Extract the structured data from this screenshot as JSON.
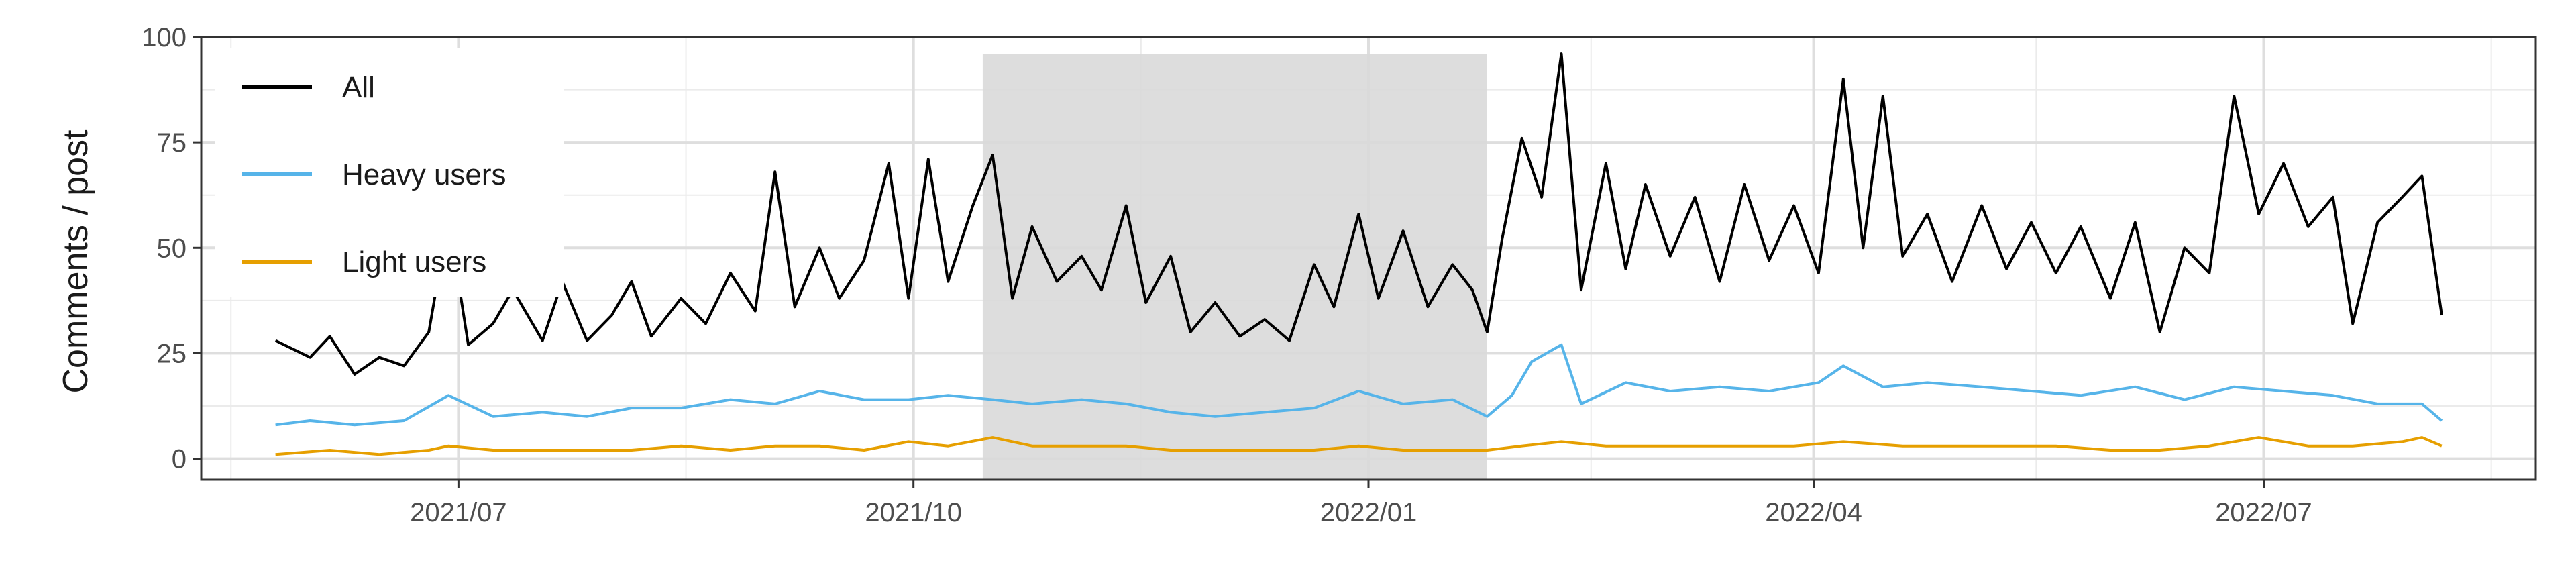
{
  "chart_data": {
    "type": "line",
    "title": "",
    "xlabel": "",
    "ylabel": "Comments / post",
    "x_range": [
      "2021-05-10",
      "2022-08-25"
    ],
    "x_ticks": [
      {
        "date": "2021-07-01",
        "label": "2021/07"
      },
      {
        "date": "2021-10-01",
        "label": "2021/10"
      },
      {
        "date": "2022-01-01",
        "label": "2022/01"
      },
      {
        "date": "2022-04-01",
        "label": "2022/04"
      },
      {
        "date": "2022-07-01",
        "label": "2022/07"
      }
    ],
    "ylim": [
      -5,
      100
    ],
    "y_ticks": [
      0,
      25,
      50,
      75,
      100
    ],
    "grid": true,
    "legend_position": "top-left",
    "shaded_region": {
      "start": "2021-10-15",
      "end": "2022-01-25",
      "ymax": 96,
      "color": "#d9d9d9"
    },
    "series": [
      {
        "name": "All",
        "color": "#000000",
        "points": [
          [
            "2021-05-25",
            28
          ],
          [
            "2021-06-01",
            24
          ],
          [
            "2021-06-05",
            29
          ],
          [
            "2021-06-10",
            20
          ],
          [
            "2021-06-15",
            24
          ],
          [
            "2021-06-20",
            22
          ],
          [
            "2021-06-25",
            30
          ],
          [
            "2021-06-29",
            57
          ],
          [
            "2021-07-03",
            27
          ],
          [
            "2021-07-08",
            32
          ],
          [
            "2021-07-12",
            40
          ],
          [
            "2021-07-18",
            28
          ],
          [
            "2021-07-22",
            42
          ],
          [
            "2021-07-27",
            28
          ],
          [
            "2021-08-01",
            34
          ],
          [
            "2021-08-05",
            42
          ],
          [
            "2021-08-09",
            29
          ],
          [
            "2021-08-15",
            38
          ],
          [
            "2021-08-20",
            32
          ],
          [
            "2021-08-25",
            44
          ],
          [
            "2021-08-30",
            35
          ],
          [
            "2021-09-03",
            68
          ],
          [
            "2021-09-07",
            36
          ],
          [
            "2021-09-12",
            50
          ],
          [
            "2021-09-16",
            38
          ],
          [
            "2021-09-21",
            47
          ],
          [
            "2021-09-26",
            70
          ],
          [
            "2021-09-30",
            38
          ],
          [
            "2021-10-04",
            71
          ],
          [
            "2021-10-08",
            42
          ],
          [
            "2021-10-13",
            60
          ],
          [
            "2021-10-17",
            72
          ],
          [
            "2021-10-21",
            38
          ],
          [
            "2021-10-25",
            55
          ],
          [
            "2021-10-30",
            42
          ],
          [
            "2021-11-04",
            48
          ],
          [
            "2021-11-08",
            40
          ],
          [
            "2021-11-13",
            60
          ],
          [
            "2021-11-17",
            37
          ],
          [
            "2021-11-22",
            48
          ],
          [
            "2021-11-26",
            30
          ],
          [
            "2021-12-01",
            37
          ],
          [
            "2021-12-06",
            29
          ],
          [
            "2021-12-11",
            33
          ],
          [
            "2021-12-16",
            28
          ],
          [
            "2021-12-21",
            46
          ],
          [
            "2021-12-25",
            36
          ],
          [
            "2021-12-30",
            58
          ],
          [
            "2022-01-03",
            38
          ],
          [
            "2022-01-08",
            54
          ],
          [
            "2022-01-13",
            36
          ],
          [
            "2022-01-18",
            46
          ],
          [
            "2022-01-22",
            40
          ],
          [
            "2022-01-25",
            30
          ],
          [
            "2022-01-28",
            52
          ],
          [
            "2022-02-01",
            76
          ],
          [
            "2022-02-05",
            62
          ],
          [
            "2022-02-09",
            96
          ],
          [
            "2022-02-13",
            40
          ],
          [
            "2022-02-18",
            70
          ],
          [
            "2022-02-22",
            45
          ],
          [
            "2022-02-26",
            65
          ],
          [
            "2022-03-03",
            48
          ],
          [
            "2022-03-08",
            62
          ],
          [
            "2022-03-13",
            42
          ],
          [
            "2022-03-18",
            65
          ],
          [
            "2022-03-23",
            47
          ],
          [
            "2022-03-28",
            60
          ],
          [
            "2022-04-02",
            44
          ],
          [
            "2022-04-07",
            90
          ],
          [
            "2022-04-11",
            50
          ],
          [
            "2022-04-15",
            86
          ],
          [
            "2022-04-19",
            48
          ],
          [
            "2022-04-24",
            58
          ],
          [
            "2022-04-29",
            42
          ],
          [
            "2022-05-05",
            60
          ],
          [
            "2022-05-10",
            45
          ],
          [
            "2022-05-15",
            56
          ],
          [
            "2022-05-20",
            44
          ],
          [
            "2022-05-25",
            55
          ],
          [
            "2022-05-31",
            38
          ],
          [
            "2022-06-05",
            56
          ],
          [
            "2022-06-10",
            30
          ],
          [
            "2022-06-15",
            50
          ],
          [
            "2022-06-20",
            44
          ],
          [
            "2022-06-25",
            86
          ],
          [
            "2022-06-30",
            58
          ],
          [
            "2022-07-05",
            70
          ],
          [
            "2022-07-10",
            55
          ],
          [
            "2022-07-15",
            62
          ],
          [
            "2022-07-19",
            32
          ],
          [
            "2022-07-24",
            56
          ],
          [
            "2022-07-29",
            62
          ],
          [
            "2022-08-02",
            67
          ],
          [
            "2022-08-06",
            34
          ]
        ]
      },
      {
        "name": "Heavy users",
        "color": "#56b4e9",
        "points": [
          [
            "2021-05-25",
            8
          ],
          [
            "2021-06-01",
            9
          ],
          [
            "2021-06-10",
            8
          ],
          [
            "2021-06-20",
            9
          ],
          [
            "2021-06-29",
            15
          ],
          [
            "2021-07-08",
            10
          ],
          [
            "2021-07-18",
            11
          ],
          [
            "2021-07-27",
            10
          ],
          [
            "2021-08-05",
            12
          ],
          [
            "2021-08-15",
            12
          ],
          [
            "2021-08-25",
            14
          ],
          [
            "2021-09-03",
            13
          ],
          [
            "2021-09-12",
            16
          ],
          [
            "2021-09-21",
            14
          ],
          [
            "2021-09-30",
            14
          ],
          [
            "2021-10-08",
            15
          ],
          [
            "2021-10-17",
            14
          ],
          [
            "2021-10-25",
            13
          ],
          [
            "2021-11-04",
            14
          ],
          [
            "2021-11-13",
            13
          ],
          [
            "2021-11-22",
            11
          ],
          [
            "2021-12-01",
            10
          ],
          [
            "2021-12-11",
            11
          ],
          [
            "2021-12-21",
            12
          ],
          [
            "2021-12-30",
            16
          ],
          [
            "2022-01-08",
            13
          ],
          [
            "2022-01-18",
            14
          ],
          [
            "2022-01-25",
            10
          ],
          [
            "2022-01-30",
            15
          ],
          [
            "2022-02-03",
            23
          ],
          [
            "2022-02-09",
            27
          ],
          [
            "2022-02-13",
            13
          ],
          [
            "2022-02-22",
            18
          ],
          [
            "2022-03-03",
            16
          ],
          [
            "2022-03-13",
            17
          ],
          [
            "2022-03-23",
            16
          ],
          [
            "2022-04-02",
            18
          ],
          [
            "2022-04-07",
            22
          ],
          [
            "2022-04-15",
            17
          ],
          [
            "2022-04-24",
            18
          ],
          [
            "2022-05-05",
            17
          ],
          [
            "2022-05-15",
            16
          ],
          [
            "2022-05-25",
            15
          ],
          [
            "2022-06-05",
            17
          ],
          [
            "2022-06-15",
            14
          ],
          [
            "2022-06-25",
            17
          ],
          [
            "2022-07-05",
            16
          ],
          [
            "2022-07-15",
            15
          ],
          [
            "2022-07-24",
            13
          ],
          [
            "2022-08-02",
            13
          ],
          [
            "2022-08-06",
            9
          ]
        ]
      },
      {
        "name": "Light users",
        "color": "#e69f00",
        "points": [
          [
            "2021-05-25",
            1
          ],
          [
            "2021-06-05",
            2
          ],
          [
            "2021-06-15",
            1
          ],
          [
            "2021-06-25",
            2
          ],
          [
            "2021-06-29",
            3
          ],
          [
            "2021-07-08",
            2
          ],
          [
            "2021-07-18",
            2
          ],
          [
            "2021-07-27",
            2
          ],
          [
            "2021-08-05",
            2
          ],
          [
            "2021-08-15",
            3
          ],
          [
            "2021-08-25",
            2
          ],
          [
            "2021-09-03",
            3
          ],
          [
            "2021-09-12",
            3
          ],
          [
            "2021-09-21",
            2
          ],
          [
            "2021-09-30",
            4
          ],
          [
            "2021-10-08",
            3
          ],
          [
            "2021-10-17",
            5
          ],
          [
            "2021-10-25",
            3
          ],
          [
            "2021-11-04",
            3
          ],
          [
            "2021-11-13",
            3
          ],
          [
            "2021-11-22",
            2
          ],
          [
            "2021-12-01",
            2
          ],
          [
            "2021-12-11",
            2
          ],
          [
            "2021-12-21",
            2
          ],
          [
            "2021-12-30",
            3
          ],
          [
            "2022-01-08",
            2
          ],
          [
            "2022-01-18",
            2
          ],
          [
            "2022-01-25",
            2
          ],
          [
            "2022-02-01",
            3
          ],
          [
            "2022-02-09",
            4
          ],
          [
            "2022-02-18",
            3
          ],
          [
            "2022-02-26",
            3
          ],
          [
            "2022-03-08",
            3
          ],
          [
            "2022-03-18",
            3
          ],
          [
            "2022-03-28",
            3
          ],
          [
            "2022-04-07",
            4
          ],
          [
            "2022-04-19",
            3
          ],
          [
            "2022-04-29",
            3
          ],
          [
            "2022-05-10",
            3
          ],
          [
            "2022-05-20",
            3
          ],
          [
            "2022-05-31",
            2
          ],
          [
            "2022-06-10",
            2
          ],
          [
            "2022-06-20",
            3
          ],
          [
            "2022-06-30",
            5
          ],
          [
            "2022-07-10",
            3
          ],
          [
            "2022-07-19",
            3
          ],
          [
            "2022-07-29",
            4
          ],
          [
            "2022-08-02",
            5
          ],
          [
            "2022-08-06",
            3
          ]
        ]
      }
    ]
  }
}
